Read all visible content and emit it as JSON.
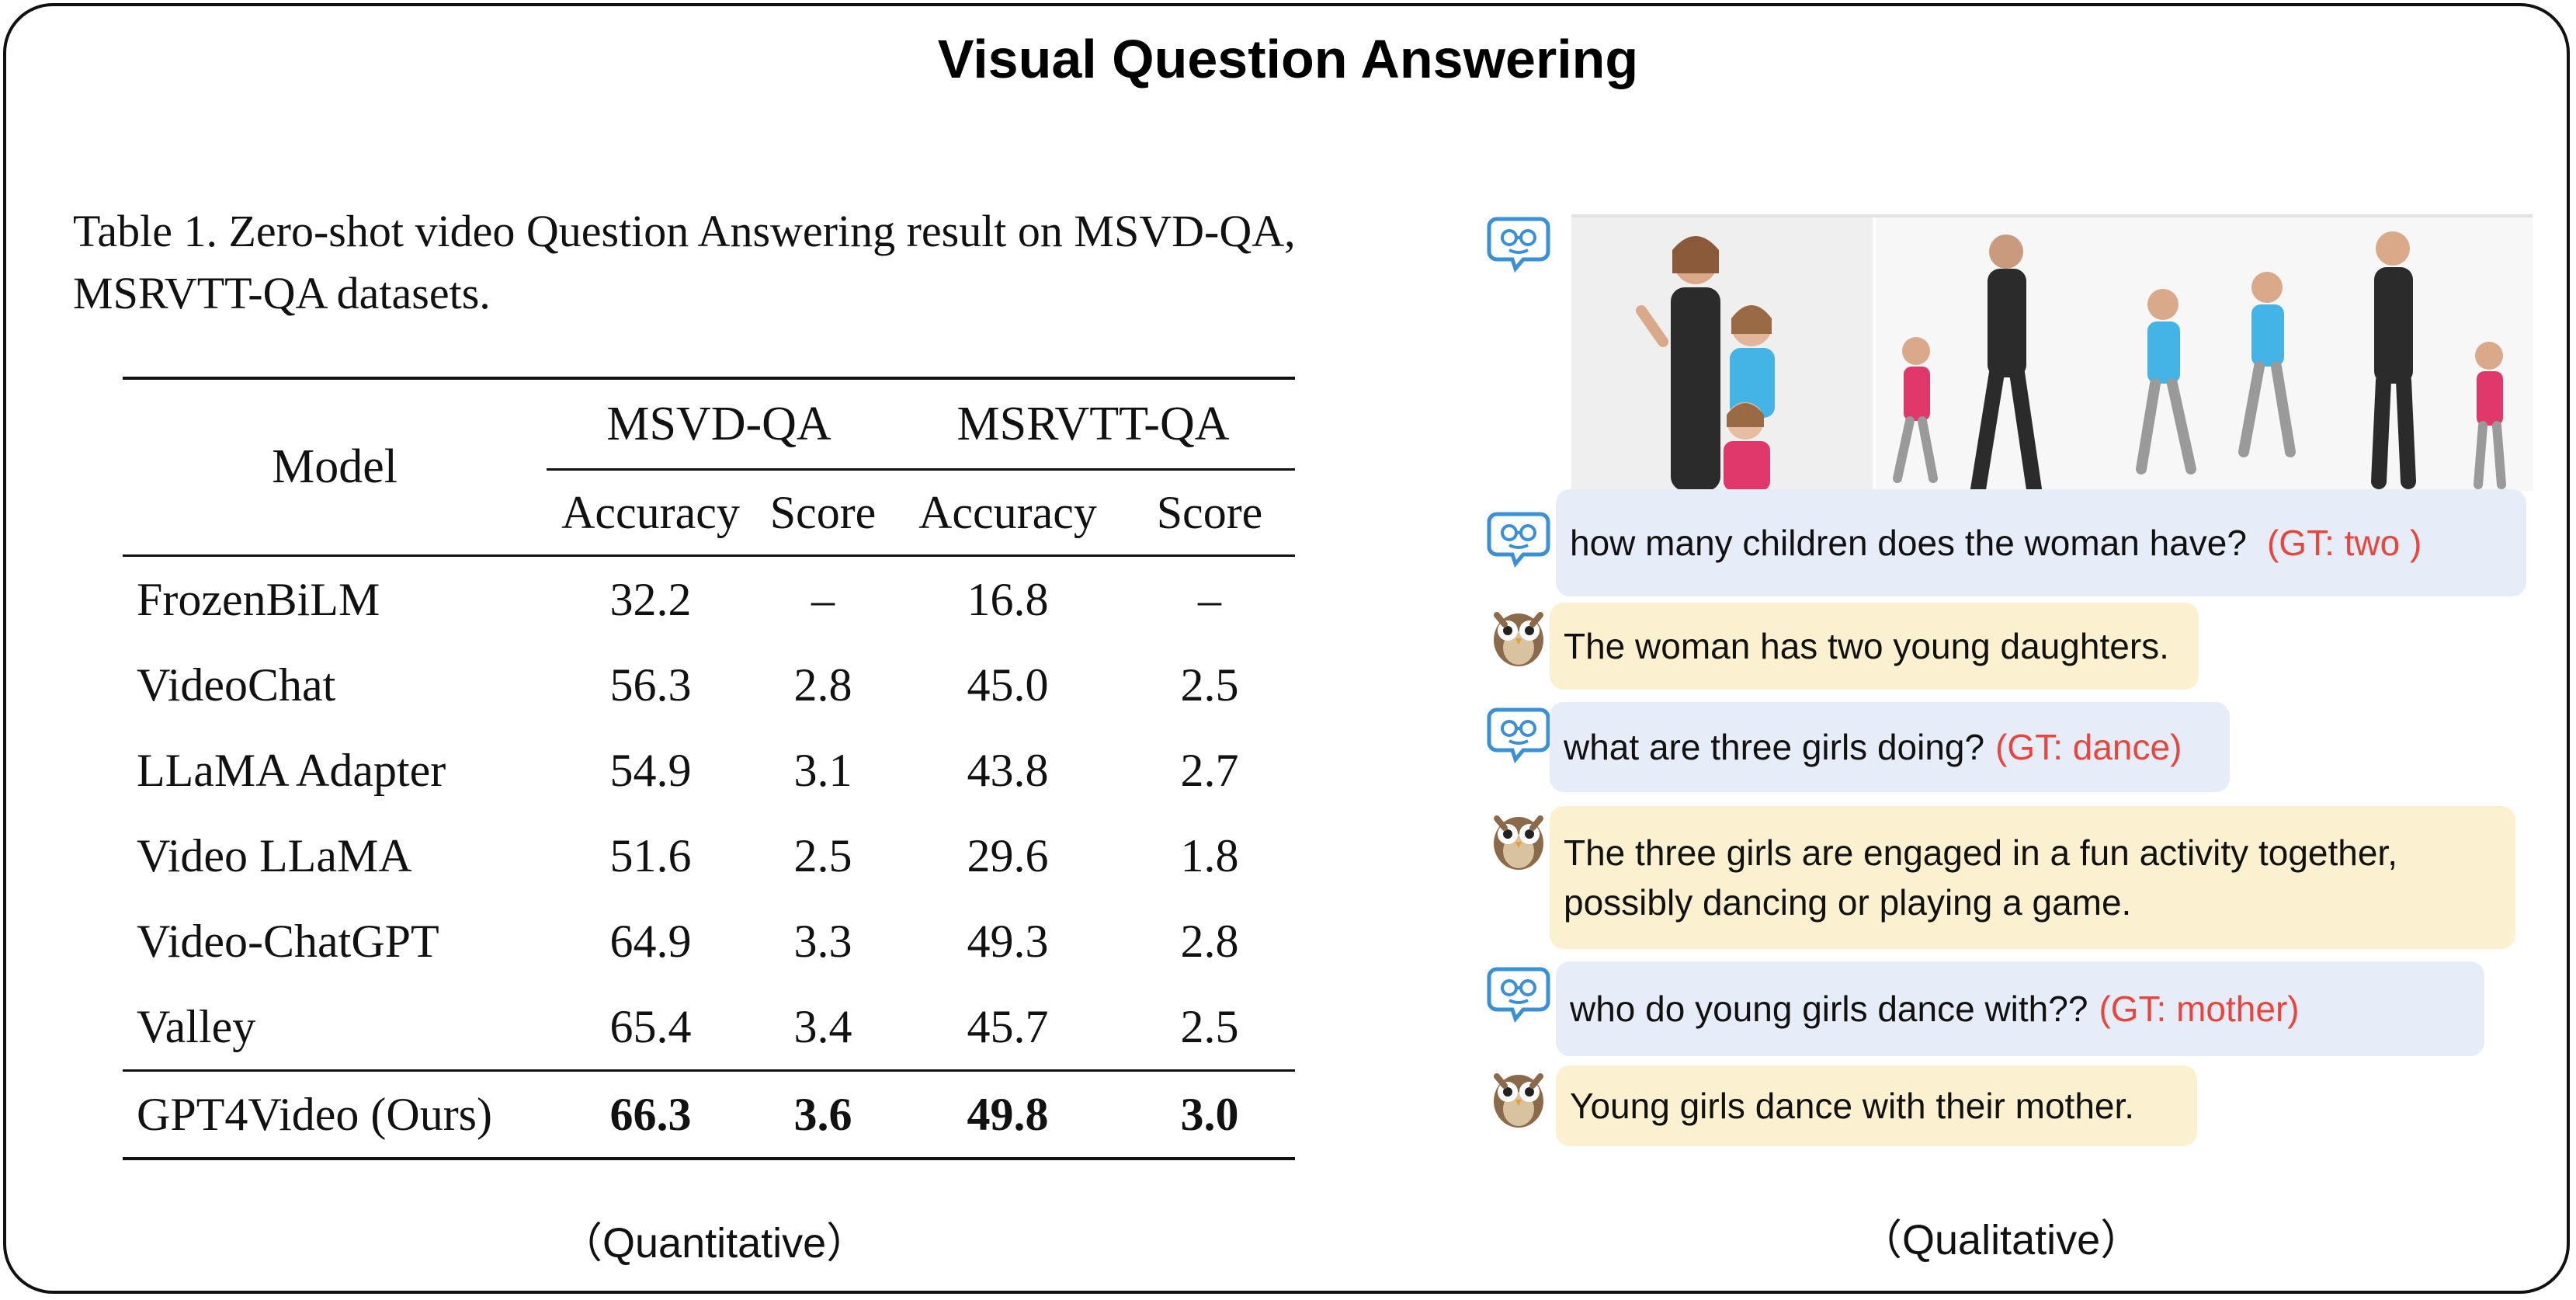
{
  "title": "Visual Question Answering",
  "caption": "Table 1.  Zero-shot video Question Answering result on MSVD-QA, MSRVTT-QA datasets.",
  "table": {
    "model_header": "Model",
    "group_headers": [
      "MSVD-QA",
      "MSRVTT-QA"
    ],
    "sub_headers": [
      "Accuracy",
      "Score",
      "Accuracy",
      "Score"
    ],
    "rows": [
      {
        "model": "FrozenBiLM",
        "values": [
          "32.2",
          "–",
          "16.8",
          "–"
        ]
      },
      {
        "model": "VideoChat",
        "values": [
          "56.3",
          "2.8",
          "45.0",
          "2.5"
        ]
      },
      {
        "model": "LLaMA Adapter",
        "values": [
          "54.9",
          "3.1",
          "43.8",
          "2.7"
        ]
      },
      {
        "model": "Video LLaMA",
        "values": [
          "51.6",
          "2.5",
          "29.6",
          "1.8"
        ]
      },
      {
        "model": "Video-ChatGPT",
        "values": [
          "64.9",
          "3.3",
          "49.3",
          "2.8"
        ]
      },
      {
        "model": "Valley",
        "values": [
          "65.4",
          "3.4",
          "45.7",
          "2.5"
        ]
      }
    ],
    "ours": {
      "model": "GPT4Video (Ours)",
      "values": [
        "66.3",
        "3.6",
        "49.8",
        "3.0"
      ]
    }
  },
  "labels": {
    "quantitative": "（Quantitative）",
    "qualitative": "（Qualitative）"
  },
  "chat": [
    {
      "role": "user",
      "text": "how many children does the woman have?",
      "gt": "(GT: two )"
    },
    {
      "role": "bot",
      "text": "The woman has two young daughters."
    },
    {
      "role": "user",
      "text": "what are three girls doing?",
      "gt": "(GT: dance)"
    },
    {
      "role": "bot",
      "text": "The three girls are engaged in a fun activity together, possibly dancing or playing a game."
    },
    {
      "role": "user",
      "text": "who do young girls dance with??",
      "gt": "(GT: mother)"
    },
    {
      "role": "bot",
      "text": "Young girls dance with their mother."
    }
  ],
  "icons": {
    "user": "robot-face-icon",
    "bot": "owl-icon"
  },
  "colors": {
    "user_bubble": "#e6edf8",
    "bot_bubble": "#fbf0d0",
    "gt_text": "#e8453c",
    "user_icon": "#3a8fd6"
  }
}
